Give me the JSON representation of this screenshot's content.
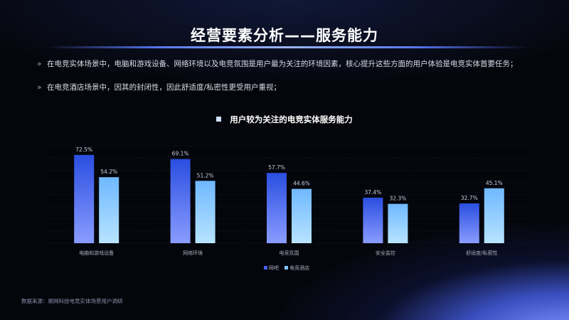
{
  "title": "经营要素分析——服务能力",
  "bullets": [
    "在电竞实体场景中，电脑和游戏设备、网络环境以及电竞氛围是用户最为关注的环境因素，核心提升这些方面的用户体验是电竞实体首要任务；",
    "在电竞酒店场景中，因其的封闭性，因此舒适度/私密性更受用户重视；"
  ],
  "bullet_marker": "»",
  "source": "数据来源：顺网科技电竞实体场景用户调研",
  "chart_data": {
    "type": "bar",
    "title": "用户较为关注的电竞实体服务能力",
    "categories": [
      "电脑和游戏设备",
      "网络环境",
      "电竞氛围",
      "安全监控",
      "舒适度/私密性"
    ],
    "series": [
      {
        "name": "网吧",
        "values": [
          72.5,
          69.1,
          57.7,
          37.4,
          32.7
        ],
        "color": "#4a5ff0"
      },
      {
        "name": "电竞酒店",
        "values": [
          54.2,
          51.2,
          44.6,
          32.3,
          45.1
        ],
        "color": "#7cc6ff"
      }
    ],
    "ylim": [
      0,
      80
    ],
    "grid": true,
    "legend": "bottom",
    "value_suffix": "%"
  }
}
